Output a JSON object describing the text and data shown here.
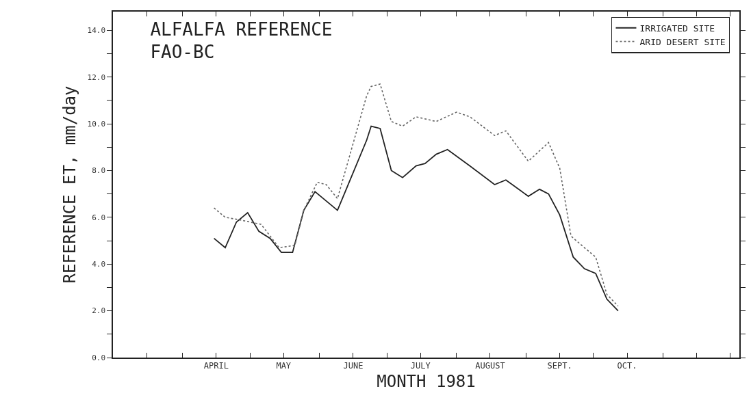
{
  "chart_data": {
    "type": "line",
    "title": "ALFALFA REFERENCE\nFAO-BC",
    "xlabel": "MONTH 1981",
    "ylabel": "REFERENCE ET, mm/day",
    "xlim": [
      "1981-03-01",
      "1981-12-05"
    ],
    "xticks": [
      {
        "value": "1981-03-16",
        "label": null
      },
      {
        "value": "1981-04-01",
        "label": null
      },
      {
        "value": "1981-04-16",
        "label": "APRIL"
      },
      {
        "value": "1981-05-01",
        "label": null
      },
      {
        "value": "1981-05-16",
        "label": "MAY"
      },
      {
        "value": "1981-06-01",
        "label": null
      },
      {
        "value": "1981-06-16",
        "label": "JUNE"
      },
      {
        "value": "1981-07-01",
        "label": null
      },
      {
        "value": "1981-07-16",
        "label": "JULY"
      },
      {
        "value": "1981-08-01",
        "label": null
      },
      {
        "value": "1981-08-16",
        "label": "AUGUST"
      },
      {
        "value": "1981-09-01",
        "label": null
      },
      {
        "value": "1981-09-16",
        "label": "SEPT."
      },
      {
        "value": "1981-10-01",
        "label": null
      },
      {
        "value": "1981-10-16",
        "label": "OCT."
      },
      {
        "value": "1981-11-01",
        "label": null
      },
      {
        "value": "1981-11-16",
        "label": null
      },
      {
        "value": "1981-12-01",
        "label": null
      }
    ],
    "ylim": [
      0,
      14.8
    ],
    "yticks": [
      {
        "value": 0,
        "label": "0.0"
      },
      {
        "value": 1,
        "label": null
      },
      {
        "value": 2,
        "label": "2.0"
      },
      {
        "value": 3,
        "label": null
      },
      {
        "value": 4,
        "label": "4.0"
      },
      {
        "value": 5,
        "label": null
      },
      {
        "value": 6,
        "label": "6.0"
      },
      {
        "value": 7,
        "label": null
      },
      {
        "value": 8,
        "label": "8.0"
      },
      {
        "value": 9,
        "label": null
      },
      {
        "value": 10,
        "label": "10.0"
      },
      {
        "value": 11,
        "label": null
      },
      {
        "value": 12,
        "label": "12.0"
      },
      {
        "value": 13,
        "label": null
      },
      {
        "value": 14,
        "label": "14.0"
      }
    ],
    "legend": "top right",
    "marker": "none",
    "series": [
      {
        "name": "IRRIGATED SITE",
        "color": "#222222",
        "line_style": "solid",
        "x": [
          "1981-04-15",
          "1981-04-20",
          "1981-04-25",
          "1981-04-30",
          "1981-05-05",
          "1981-05-10",
          "1981-05-15",
          "1981-05-20",
          "1981-05-25",
          "1981-05-30",
          "1981-06-09",
          "1981-06-22",
          "1981-06-24",
          "1981-06-28",
          "1981-07-03",
          "1981-07-08",
          "1981-07-14",
          "1981-07-18",
          "1981-07-23",
          "1981-07-28",
          "1981-08-07",
          "1981-08-18",
          "1981-08-23",
          "1981-09-02",
          "1981-09-07",
          "1981-09-11",
          "1981-09-16",
          "1981-09-22",
          "1981-09-27",
          "1981-10-02",
          "1981-10-07",
          "1981-10-12"
        ],
        "values": [
          5.1,
          4.7,
          5.8,
          6.2,
          5.4,
          5.1,
          4.5,
          4.5,
          6.3,
          7.1,
          6.3,
          9.3,
          9.9,
          9.8,
          8.0,
          7.7,
          8.2,
          8.3,
          8.7,
          8.9,
          8.2,
          7.4,
          7.6,
          6.9,
          7.2,
          7.0,
          6.1,
          4.3,
          3.8,
          3.6,
          2.5,
          2.0
        ]
      },
      {
        "name": "ARID DESERT SITE",
        "color": "#666666",
        "line_style": "dotted",
        "x": [
          "1981-04-15",
          "1981-04-20",
          "1981-04-26",
          "1981-05-01",
          "1981-05-06",
          "1981-05-10",
          "1981-05-14",
          "1981-05-21",
          "1981-05-25",
          "1981-05-31",
          "1981-06-04",
          "1981-06-09",
          "1981-06-22",
          "1981-06-24",
          "1981-06-28",
          "1981-07-03",
          "1981-07-08",
          "1981-07-14",
          "1981-07-23",
          "1981-08-01",
          "1981-08-07",
          "1981-08-18",
          "1981-08-23",
          "1981-09-02",
          "1981-09-11",
          "1981-09-16",
          "1981-09-21",
          "1981-09-27",
          "1981-10-02",
          "1981-10-07",
          "1981-10-12"
        ],
        "values": [
          6.4,
          6.0,
          5.9,
          5.8,
          5.7,
          5.2,
          4.7,
          4.8,
          6.3,
          7.5,
          7.4,
          6.8,
          11.2,
          11.6,
          11.7,
          10.1,
          9.9,
          10.3,
          10.1,
          10.5,
          10.3,
          9.5,
          9.7,
          8.4,
          9.2,
          8.1,
          5.2,
          4.7,
          4.3,
          2.7,
          2.2
        ]
      }
    ]
  }
}
